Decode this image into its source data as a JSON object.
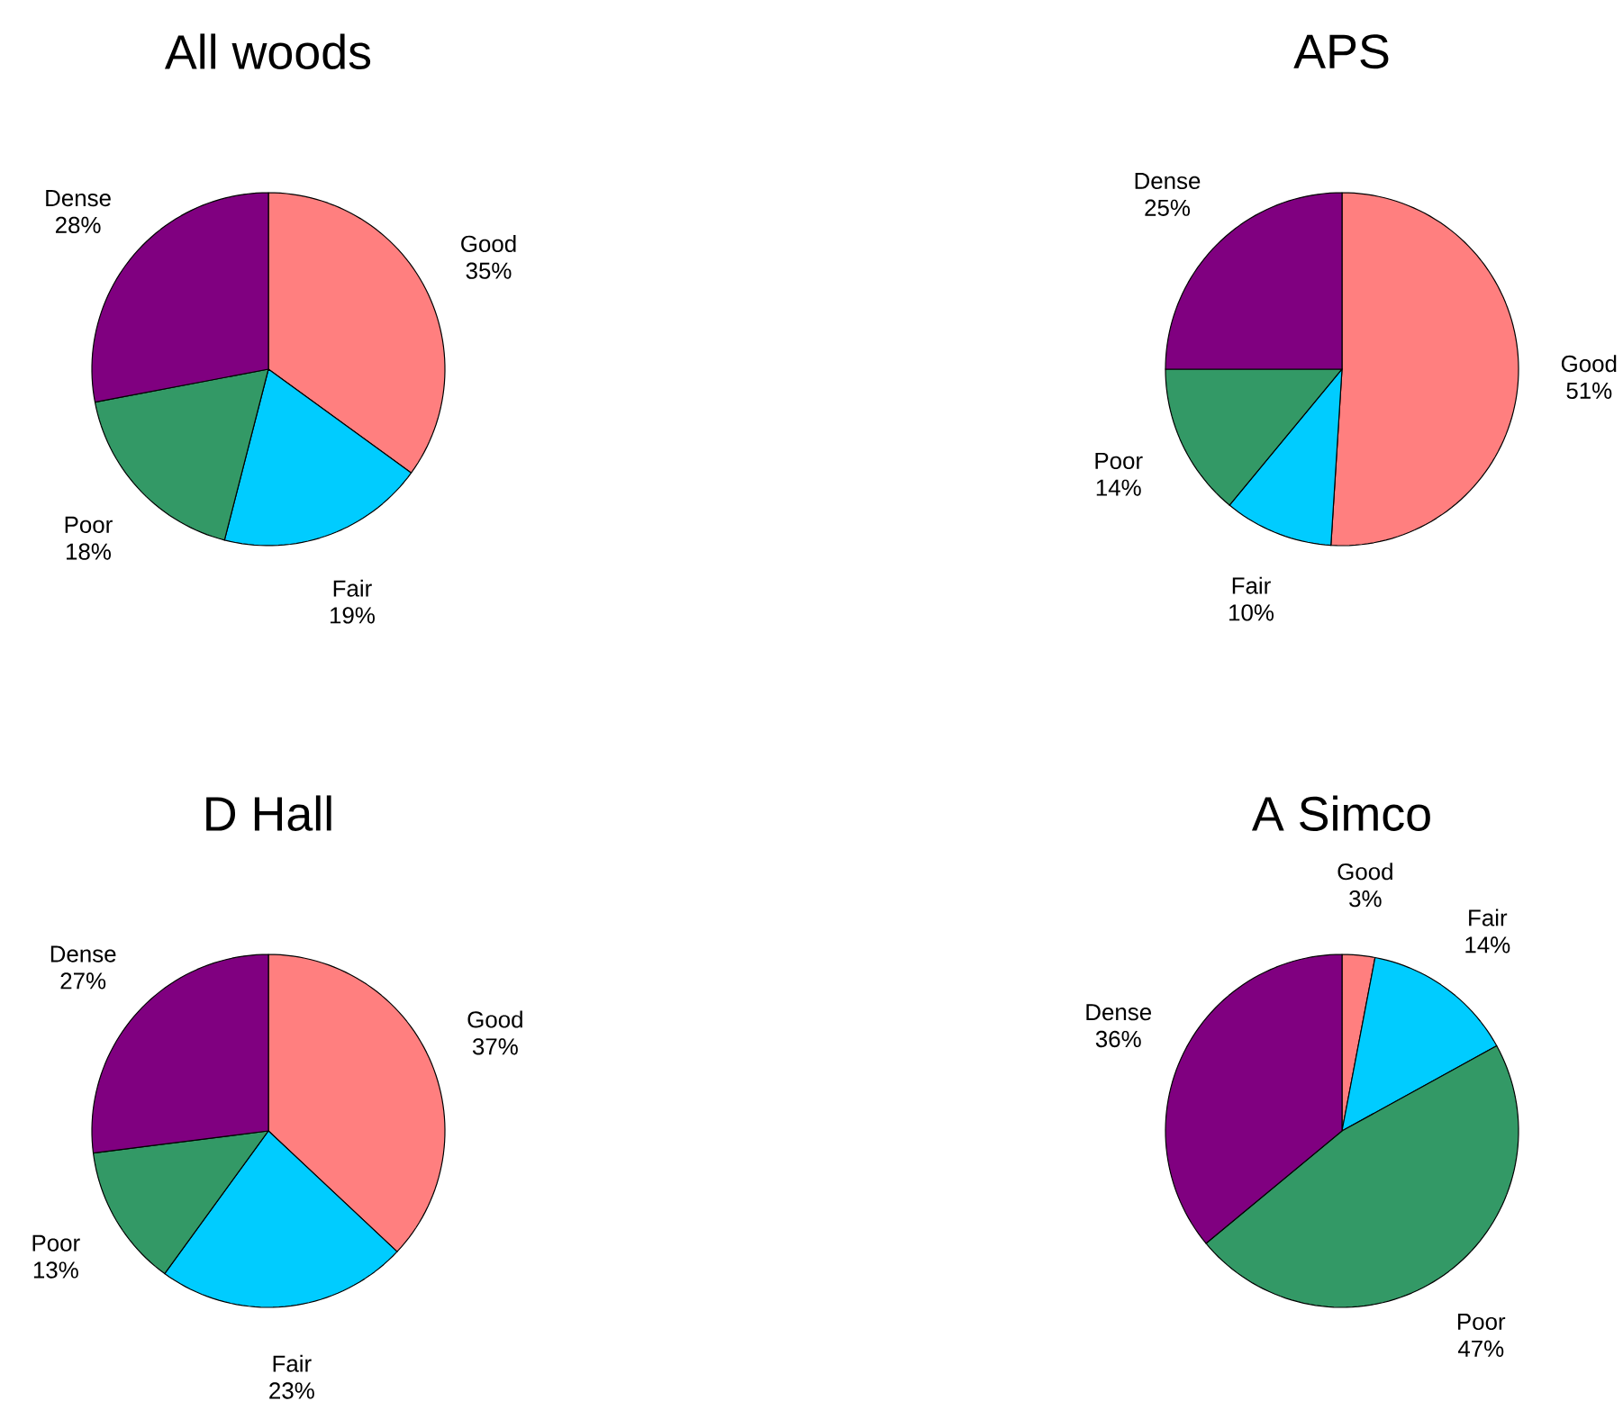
{
  "chart_data": [
    {
      "type": "pie",
      "title": "All woods",
      "categories": [
        "Good",
        "Fair",
        "Poor",
        "Dense"
      ],
      "values": [
        35,
        19,
        18,
        28
      ],
      "value_labels": [
        "35%",
        "19%",
        "18%",
        "28%"
      ],
      "colors": [
        "#ff7f7f",
        "#00ccff",
        "#339966",
        "#800080"
      ]
    },
    {
      "type": "pie",
      "title": "APS",
      "categories": [
        "Good",
        "Fair",
        "Poor",
        "Dense"
      ],
      "values": [
        51,
        10,
        14,
        25
      ],
      "value_labels": [
        "51%",
        "10%",
        "14%",
        "25%"
      ],
      "colors": [
        "#ff7f7f",
        "#00ccff",
        "#339966",
        "#800080"
      ]
    },
    {
      "type": "pie",
      "title": "D Hall",
      "categories": [
        "Good",
        "Fair",
        "Poor",
        "Dense"
      ],
      "values": [
        37,
        23,
        13,
        27
      ],
      "value_labels": [
        "37%",
        "23%",
        "13%",
        "27%"
      ],
      "colors": [
        "#ff7f7f",
        "#00ccff",
        "#339966",
        "#800080"
      ]
    },
    {
      "type": "pie",
      "title": "A Simco",
      "categories": [
        "Good",
        "Fair",
        "Poor",
        "Dense"
      ],
      "values": [
        3,
        14,
        47,
        36
      ],
      "value_labels": [
        "3%",
        "14%",
        "47%",
        "36%"
      ],
      "colors": [
        "#ff7f7f",
        "#00ccff",
        "#339966",
        "#800080"
      ]
    }
  ]
}
